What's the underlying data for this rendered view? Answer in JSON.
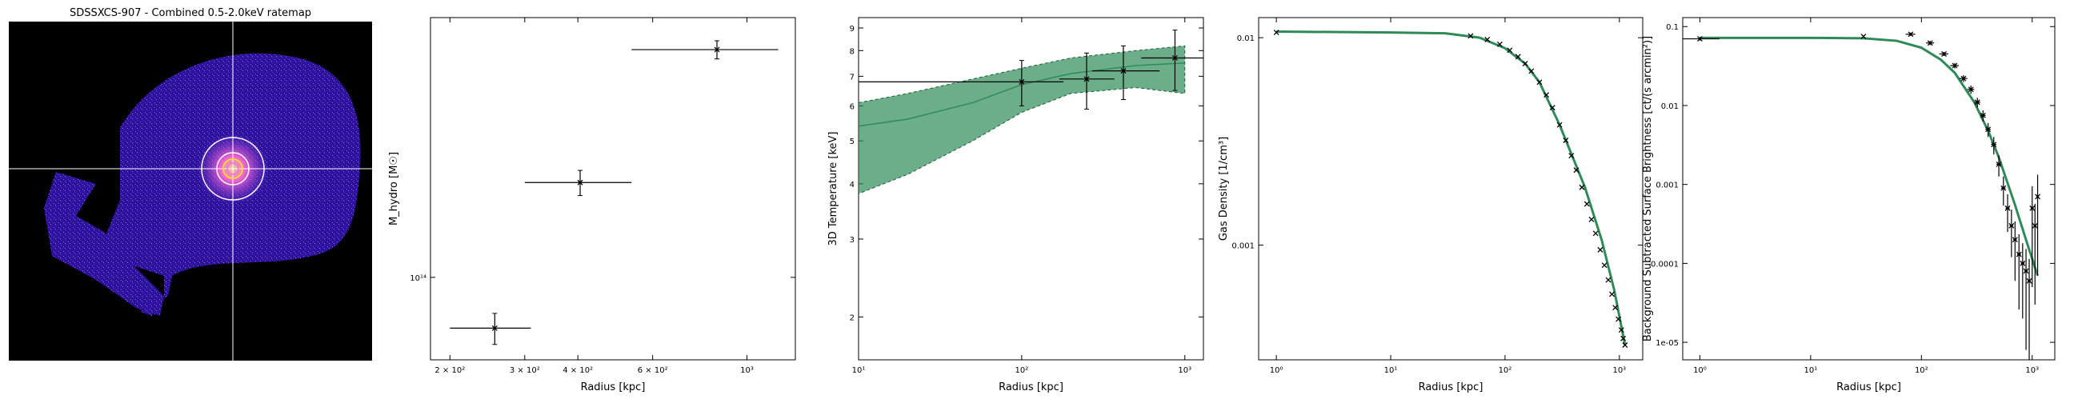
{
  "image_panel": {
    "title": "SDSSXCS-907 - Combined 0.5-2.0keV ratemap"
  },
  "colors": {
    "background": "#000000",
    "ratemap": "#3a1aa8",
    "fill": "#2e8b57",
    "line": "#000000"
  },
  "chart_data": [
    {
      "type": "scatter",
      "xlabel": "Radius [kpc]",
      "ylabel": "M_hydro [M☉]",
      "xscale": "log",
      "yscale": "log",
      "xlim": [
        180,
        1300
      ],
      "ylim": [
        60000000000000,
        500000000000000
      ],
      "x_ticklabels": [
        "2 × 10²",
        "3 × 10²",
        "4 × 10²",
        "6 × 10²",
        "10³"
      ],
      "y_ticklabels": [
        "10¹⁴"
      ],
      "series": [
        {
          "x": [
            255,
            405,
            850
          ],
          "xerr_low": [
            55,
            105,
            315
          ],
          "xerr_high": [
            55,
            130,
            335
          ],
          "y": [
            73000000000000,
            180000000000000,
            410000000000000
          ],
          "yerr": [
            7000000000000,
            14000000000000,
            23000000000000
          ]
        }
      ]
    },
    {
      "type": "scatter",
      "xlabel": "Radius [kpc]",
      "ylabel": "3D Temperature [keV]",
      "xscale": "log",
      "yscale": "log",
      "xlim": [
        10,
        1300
      ],
      "ylim": [
        1.6,
        9.5
      ],
      "x_ticklabels": [
        "10¹",
        "10²",
        "10³"
      ],
      "y_ticklabels": [
        "2",
        "3",
        "4",
        "5",
        "6",
        "7",
        "8",
        "9"
      ],
      "series": [
        {
          "x": [
            100,
            250,
            420,
            870
          ],
          "xerr_low": [
            90,
            80,
            150,
            330
          ],
          "xerr_high": [
            80,
            120,
            280,
            430
          ],
          "y": [
            6.8,
            6.9,
            7.2,
            7.7
          ],
          "yerr": [
            0.8,
            1.0,
            1.0,
            1.2
          ]
        }
      ],
      "model": {
        "x": [
          10,
          20,
          50,
          100,
          200,
          500,
          1000
        ],
        "median": [
          5.4,
          5.6,
          6.1,
          6.7,
          7.1,
          7.4,
          7.5
        ],
        "lower": [
          3.8,
          4.2,
          5.0,
          5.8,
          6.4,
          6.6,
          6.4
        ],
        "upper": [
          6.1,
          6.4,
          6.9,
          7.3,
          7.7,
          8.0,
          8.2
        ]
      }
    },
    {
      "type": "scatter",
      "xlabel": "Radius [kpc]",
      "ylabel": "Gas Density [1/cm³]",
      "xscale": "log",
      "yscale": "log",
      "xlim": [
        0.7,
        1600
      ],
      "ylim": [
        0.00028,
        0.0125
      ],
      "x_ticklabels": [
        "10⁰",
        "10¹",
        "10²",
        "10³"
      ],
      "y_ticklabels": [
        "0.01",
        "0.001"
      ],
      "series": [
        {
          "x": [
            1,
            50,
            70,
            90,
            110,
            130,
            150,
            170,
            200,
            230,
            260,
            300,
            340,
            380,
            420,
            470,
            520,
            570,
            620,
            680,
            740,
            800,
            860,
            920,
            980,
            1040,
            1080,
            1120
          ],
          "y": [
            0.0106,
            0.0102,
            0.0098,
            0.0093,
            0.0087,
            0.0081,
            0.0075,
            0.0069,
            0.0061,
            0.0053,
            0.0046,
            0.0038,
            0.0032,
            0.0027,
            0.0023,
            0.0019,
            0.00158,
            0.00133,
            0.00114,
            0.00095,
            0.0008,
            0.00068,
            0.00058,
            0.0005,
            0.00044,
            0.00039,
            0.000355,
            0.00033
          ]
        }
      ],
      "model": {
        "x": [
          1,
          10,
          30,
          60,
          100,
          150,
          200,
          300,
          500,
          700,
          900,
          1120
        ],
        "median": [
          0.0107,
          0.0106,
          0.0105,
          0.01,
          0.0089,
          0.0075,
          0.0061,
          0.0038,
          0.0019,
          0.00106,
          0.00061,
          0.00033
        ]
      }
    },
    {
      "type": "scatter",
      "xlabel": "Radius [kpc]",
      "ylabel": "Background Subtracted Surface Brightness [ct/(s arcmin²)]",
      "xscale": "log",
      "yscale": "log",
      "xlim": [
        0.7,
        1600
      ],
      "ylim": [
        6e-06,
        0.13
      ],
      "x_ticklabels": [
        "10⁰",
        "10¹",
        "10²",
        "10³"
      ],
      "y_ticklabels": [
        "0.1",
        "0.01",
        "0.001",
        "0.0001",
        "1e-05"
      ],
      "series": [
        {
          "x": [
            1,
            30,
            80,
            120,
            160,
            200,
            240,
            280,
            320,
            360,
            400,
            450,
            500,
            550,
            600,
            650,
            700,
            760,
            820,
            880,
            940,
            1000,
            1060,
            1120
          ],
          "xerr": [
            0.5,
            0,
            8,
            10,
            15,
            18,
            20,
            20,
            20,
            20,
            22,
            25,
            25,
            25,
            25,
            25,
            25,
            30,
            30,
            30,
            30,
            30,
            30,
            30
          ],
          "y": [
            0.07,
            0.075,
            0.08,
            0.062,
            0.045,
            0.032,
            0.022,
            0.016,
            0.011,
            0.0075,
            0.005,
            0.0032,
            0.0018,
            0.0009,
            0.0005,
            0.0003,
            0.0002,
            0.00013,
            0.0001,
            8e-05,
            6e-05,
            0.0005,
            0.0003,
            0.0007
          ],
          "yerr_frac": [
            0.05,
            0.03,
            0.05,
            0.06,
            0.06,
            0.08,
            0.1,
            0.12,
            0.14,
            0.16,
            0.2,
            0.25,
            0.3,
            0.4,
            0.5,
            0.6,
            0.7,
            0.8,
            0.8,
            0.9,
            0.9,
            0.9,
            0.9,
            0.9
          ]
        }
      ],
      "model": {
        "x": [
          1,
          10,
          30,
          60,
          100,
          150,
          200,
          300,
          400,
          500,
          700,
          900,
          1120
        ],
        "median": [
          0.072,
          0.072,
          0.071,
          0.066,
          0.054,
          0.038,
          0.026,
          0.011,
          0.0048,
          0.0022,
          0.00055,
          0.00018,
          7e-05
        ]
      }
    }
  ]
}
